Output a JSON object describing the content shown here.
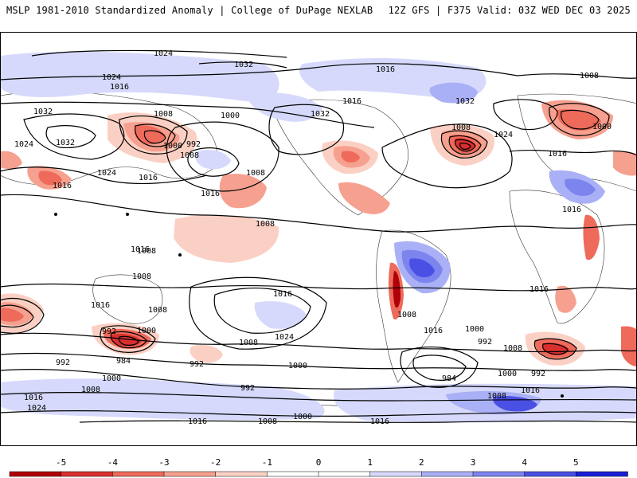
{
  "header": {
    "left_title": "MSLP 1981-2010 Standardized Anomaly | College of DuPage NEXLAB",
    "right_title": "12Z GFS | F375 Valid: 03Z WED DEC 03 2025"
  },
  "colors": {
    "neg5": "#b0000a",
    "neg4": "#d7302f",
    "neg3": "#ee6a5a",
    "neg2": "#f6a08f",
    "neg1": "#fbd0c4",
    "zero": "#ffffff",
    "pos1": "#d6d9fb",
    "pos2": "#aab0f5",
    "pos3": "#7c84ee",
    "pos4": "#4a50e3",
    "pos5": "#1a1fd6",
    "land": "#d8d8d8",
    "contour": "#000000"
  },
  "colorbar": {
    "ticks": [
      "-5",
      "-4",
      "-3",
      "-2",
      "-1",
      "0",
      "1",
      "2",
      "3",
      "4",
      "5"
    ]
  },
  "isobar_labels": [
    "1024",
    "1032",
    "1024",
    "1016",
    "1032",
    "1008",
    "1000",
    "1024",
    "1032",
    "992",
    "1000",
    "1008",
    "1016",
    "1016",
    "1024",
    "1016",
    "1008",
    "1016",
    "1008",
    "1008",
    "1008",
    "1016",
    "1008",
    "992",
    "1000",
    "984",
    "992",
    "992",
    "1008",
    "1000",
    "1016",
    "1024",
    "1008",
    "992",
    "1000",
    "1024",
    "1016",
    "1008",
    "1000",
    "1016",
    "1016",
    "1008",
    "1016",
    "1032",
    "1016",
    "1016",
    "1008",
    "1024",
    "1032",
    "1000",
    "1016",
    "1008",
    "992",
    "1000",
    "1008",
    "1016",
    "984",
    "992",
    "1008",
    "1016",
    "1016",
    "1000"
  ]
}
